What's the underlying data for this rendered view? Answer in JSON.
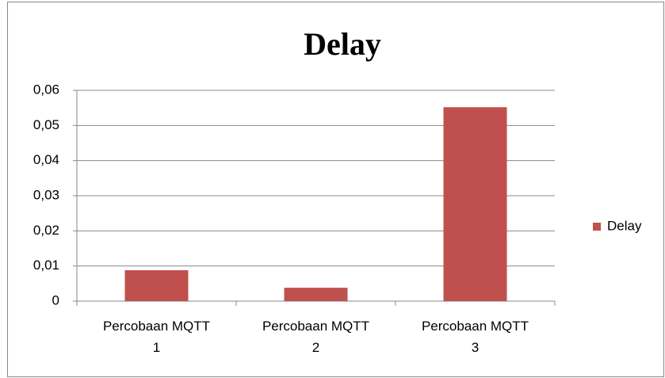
{
  "chart_data": {
    "type": "bar",
    "title": "Delay",
    "categories": [
      "Percobaan MQTT 1",
      "Percobaan MQTT 2",
      "Percobaan MQTT 3"
    ],
    "series": [
      {
        "name": "Delay",
        "color": "#c0504d",
        "values": [
          0.0088,
          0.0038,
          0.0552
        ]
      }
    ],
    "ylim": [
      0,
      0.06
    ],
    "yticks": [
      0,
      {
        "value": 0.01,
        "label": "0,01"
      },
      {
        "value": 0.02,
        "label": "0,02"
      },
      {
        "value": 0.03,
        "label": "0,03"
      },
      {
        "value": 0.04,
        "label": "0,04"
      },
      {
        "value": 0.05,
        "label": "0,05"
      },
      {
        "value": 0.06,
        "label": "0,06"
      }
    ],
    "grid": true,
    "legend": "right"
  }
}
